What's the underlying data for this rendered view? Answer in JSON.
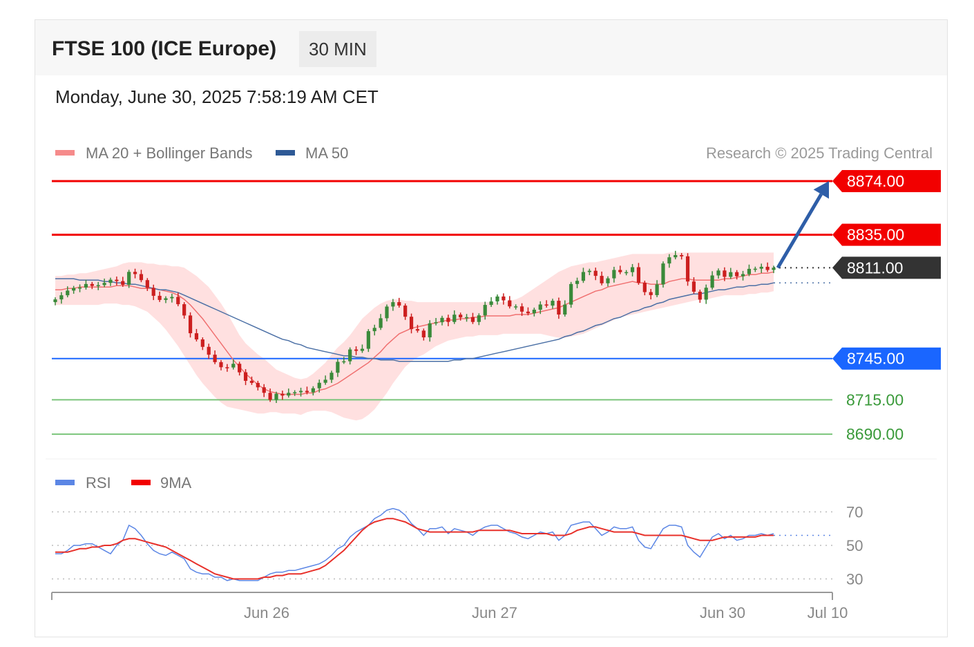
{
  "header": {
    "title": "FTSE 100 (ICE Europe)",
    "timeframe": "30 MIN",
    "datetime": "Monday, June 30, 2025 7:58:19 AM CET"
  },
  "legend": {
    "ma20": "MA 20 + Bollinger Bands",
    "ma50": "MA 50",
    "credit": "Research © 2025 Trading Central",
    "rsi": "RSI",
    "rsi_ma": "9MA"
  },
  "colors": {
    "resistance": "#f20000",
    "current": "#333333",
    "pivot": "#1a66ff",
    "support": "#7ac47a",
    "support_text": "#3a9a3a",
    "bollinger": "#ffd6d6",
    "ma20": "#f07070",
    "ma50": "#4a6fa5",
    "bull": "#3a8a3a",
    "bear": "#cc1f1f",
    "rsi": "#5b86e5",
    "rsi_ma": "#e8302a",
    "arrow": "#2e5ea8"
  },
  "chart_data": [
    {
      "type": "candlestick",
      "levels": [
        {
          "label": "8874.00",
          "value": 8874,
          "role": "resistance"
        },
        {
          "label": "8835.00",
          "value": 8835,
          "role": "resistance"
        },
        {
          "label": "8811.00",
          "value": 8811,
          "role": "current"
        },
        {
          "label": "8745.00",
          "value": 8745,
          "role": "pivot"
        },
        {
          "label": "8715.00",
          "value": 8715,
          "role": "support"
        },
        {
          "label": "8690.00",
          "value": 8690,
          "role": "support"
        }
      ],
      "ylim": [
        8672,
        8880
      ],
      "x_ticks": [
        "Jun 26",
        "Jun 27",
        "Jun 30",
        "Jul 10"
      ],
      "target": 8874,
      "close": [
        8788.0,
        8791.0,
        8794.4,
        8796.3,
        8796.6,
        8799.2,
        8797.8,
        8798.4,
        8800.0,
        8802.3,
        8801.3,
        8798.6,
        8808.0,
        8806.4,
        8802.0,
        8796.4,
        8790.6,
        8787.6,
        8788.8,
        8789.8,
        8784.5,
        8776.3,
        8763.4,
        8758.9,
        8753.5,
        8747.8,
        8742.4,
        8738.7,
        8738.5,
        8741.2,
        8735.0,
        8728.8,
        8727.3,
        8724.1,
        8720.1,
        8715.0,
        8719.4,
        8718.1,
        8720.1,
        8720.5,
        8721.5,
        8720.5,
        8723.4,
        8727.4,
        8729.6,
        8734.7,
        8742.6,
        8743.0,
        8751.6,
        8750.6,
        8752.1,
        8764.9,
        8767.3,
        8774.3,
        8782.8,
        8786.0,
        8783.5,
        8775.4,
        8766.4,
        8765.3,
        8760.4,
        8770.6,
        8771.4,
        8774.6,
        8771.6,
        8776.9,
        8774.9,
        8775.1,
        8771.6,
        8776.4,
        8784.0,
        8786.5,
        8790.1,
        8787.3,
        8782.9,
        8782.9,
        8779.1,
        8777.9,
        8780.5,
        8784.3,
        8783.5,
        8787.0,
        8777.0,
        8784.2,
        8799.2,
        8801.5,
        8807.9,
        8808.8,
        8805.1,
        8799.7,
        8803.3,
        8809.4,
        8807.8,
        8807.8,
        8811.4,
        8800.1,
        8793.3,
        8791.1,
        8798.9,
        8814.1,
        8818.6,
        8820.2,
        8819.3,
        8801.0,
        8793.6,
        8787.8,
        8796.5,
        8805.4,
        8809.0,
        8804.4,
        8807.8,
        8804.8,
        8806.4,
        8810.2,
        8810.3,
        8811.7,
        8809.4,
        8811.0
      ],
      "ma20": [
        8795,
        8795,
        8796,
        8796,
        8797,
        8797,
        8797,
        8797,
        8797,
        8797,
        8798,
        8798,
        8798,
        8797,
        8796,
        8796,
        8796,
        8795,
        8794,
        8793,
        8791,
        8788,
        8784,
        8779,
        8774,
        8768,
        8762,
        8756,
        8750,
        8744,
        8739,
        8734,
        8730,
        8726,
        8723,
        8721,
        8720,
        8719,
        8719,
        8719,
        8719,
        8720,
        8720,
        8722,
        8723,
        8725,
        8727,
        8730,
        8733,
        8736,
        8739,
        8742,
        8746,
        8750,
        8755,
        8759,
        8763,
        8765,
        8767,
        8768,
        8769,
        8770,
        8771,
        8772,
        8773,
        8773,
        8774,
        8774,
        8775,
        8775,
        8776,
        8776,
        8776,
        8776,
        8776,
        8777,
        8777,
        8777,
        8778,
        8779,
        8780,
        8781,
        8782,
        8784,
        8786,
        8788,
        8790,
        8792,
        8794,
        8795,
        8797,
        8798,
        8799,
        8800,
        8801,
        8800,
        8800,
        8799,
        8799,
        8799,
        8801,
        8802,
        8803,
        8803,
        8802,
        8802,
        8802,
        8802,
        8802,
        8803,
        8803,
        8804,
        8805,
        8806,
        8806,
        8807,
        8807,
        8808
      ],
      "bb_upper": [
        8805,
        8805,
        8806,
        8806,
        8807,
        8807,
        8808,
        8809,
        8810,
        8811,
        8812,
        8814,
        8815,
        8815,
        8815,
        8814,
        8814,
        8813,
        8813,
        8812,
        8812,
        8811,
        8808,
        8805,
        8801,
        8797,
        8791,
        8785,
        8778,
        8770,
        8762,
        8756,
        8752,
        8748,
        8745,
        8741,
        8737,
        8735,
        8733,
        8731,
        8730,
        8731,
        8734,
        8738,
        8742,
        8748,
        8753,
        8757,
        8762,
        8768,
        8774,
        8778,
        8782,
        8785,
        8787,
        8788,
        8788,
        8787,
        8787,
        8786,
        8786,
        8786,
        8786,
        8786,
        8786,
        8786,
        8786,
        8786,
        8786,
        8786,
        8786,
        8786,
        8786,
        8786,
        8787,
        8788,
        8790,
        8793,
        8796,
        8799,
        8802,
        8805,
        8808,
        8810,
        8812,
        8813,
        8814,
        8815,
        8815,
        8816,
        8817,
        8818,
        8819,
        8820,
        8821,
        8821,
        8821,
        8821,
        8821,
        8821,
        8822,
        8822,
        8822,
        8822,
        8822,
        8822,
        8822,
        8822,
        8822,
        8822,
        8822,
        8822,
        8822,
        8822,
        8822,
        8822,
        8822,
        8822
      ],
      "bb_lower": [
        8784,
        8784,
        8784,
        8784,
        8784,
        8784,
        8784,
        8784,
        8785,
        8785,
        8785,
        8784,
        8784,
        8783,
        8781,
        8779,
        8775,
        8771,
        8766,
        8760,
        8754,
        8747,
        8740,
        8733,
        8727,
        8722,
        8717,
        8713,
        8710,
        8709,
        8708,
        8707,
        8706,
        8705,
        8705,
        8706,
        8706,
        8705,
        8705,
        8705,
        8704,
        8706,
        8707,
        8707,
        8707,
        8706,
        8704,
        8702,
        8701,
        8700,
        8701,
        8704,
        8708,
        8714,
        8720,
        8727,
        8733,
        8739,
        8743,
        8746,
        8748,
        8751,
        8754,
        8756,
        8758,
        8759,
        8760,
        8761,
        8761,
        8762,
        8762,
        8762,
        8762,
        8763,
        8763,
        8763,
        8763,
        8763,
        8763,
        8763,
        8762,
        8761,
        8760,
        8760,
        8761,
        8762,
        8763,
        8765,
        8767,
        8769,
        8771,
        8773,
        8775,
        8776,
        8777,
        8778,
        8779,
        8780,
        8781,
        8782,
        8783,
        8784,
        8785,
        8786,
        8787,
        8788,
        8788,
        8789,
        8790,
        8791,
        8791,
        8791,
        8791,
        8792,
        8792,
        8793,
        8793,
        8794
      ],
      "ma50": [
        8803,
        8803,
        8803,
        8803,
        8802,
        8802,
        8802,
        8802,
        8801,
        8801,
        8800,
        8800,
        8799,
        8799,
        8798,
        8797,
        8796,
        8795,
        8795,
        8794,
        8793,
        8791,
        8789,
        8787,
        8785,
        8783,
        8781,
        8779,
        8777,
        8775,
        8773,
        8771,
        8769,
        8767,
        8765,
        8763,
        8761,
        8759,
        8758,
        8756,
        8755,
        8753,
        8752,
        8751,
        8750,
        8749,
        8748,
        8747,
        8747,
        8746,
        8746,
        8745,
        8745,
        8744,
        8744,
        8744,
        8743,
        8743,
        8743,
        8743,
        8743,
        8743,
        8743,
        8743,
        8743,
        8744,
        8744,
        8745,
        8745,
        8746,
        8747,
        8748,
        8749,
        8750,
        8751,
        8752,
        8753,
        8754,
        8755,
        8756,
        8757,
        8758,
        8759,
        8761,
        8762,
        8764,
        8765,
        8767,
        8769,
        8770,
        8772,
        8774,
        8775,
        8777,
        8779,
        8780,
        8782,
        8783,
        8785,
        8786,
        8788,
        8789,
        8790,
        8791,
        8792,
        8792,
        8793,
        8794,
        8795,
        8795,
        8796,
        8797,
        8797,
        8798,
        8798,
        8799,
        8799,
        8800
      ]
    },
    {
      "type": "line",
      "ylim": [
        24,
        76
      ],
      "y_ticks": [
        70,
        50,
        30
      ],
      "series": [
        {
          "name": "RSI",
          "values": [
            45,
            45,
            47,
            50,
            50,
            51,
            51,
            49,
            47,
            45,
            50,
            53,
            62,
            60,
            56,
            51,
            47,
            45,
            44,
            46,
            44,
            42,
            36,
            34,
            33,
            33,
            31,
            31,
            29,
            30,
            29,
            29,
            29,
            29,
            31,
            33,
            34,
            34,
            35,
            35,
            36,
            37,
            38,
            39,
            41,
            44,
            48,
            50,
            55,
            58,
            60,
            62,
            66,
            68,
            71,
            72,
            71,
            68,
            63,
            60,
            56,
            60,
            60,
            61,
            57,
            60,
            59,
            58,
            56,
            59,
            61,
            62,
            62,
            60,
            58,
            57,
            55,
            54,
            56,
            58,
            57,
            58,
            53,
            56,
            62,
            63,
            64,
            64,
            60,
            56,
            58,
            61,
            60,
            60,
            61,
            53,
            49,
            48,
            54,
            60,
            62,
            62,
            61,
            50,
            46,
            43,
            49,
            55,
            57,
            54,
            56,
            53,
            54,
            56,
            56,
            57,
            56,
            57
          ]
        },
        {
          "name": "9MA",
          "values": [
            46,
            46,
            46,
            47,
            48,
            48,
            49,
            49,
            50,
            50,
            51,
            53,
            54,
            54,
            53,
            52,
            51,
            50,
            49,
            47,
            45,
            43,
            41,
            39,
            37,
            35,
            33,
            32,
            31,
            30,
            30,
            30,
            30,
            30,
            31,
            31,
            32,
            32,
            33,
            33,
            33,
            34,
            35,
            36,
            38,
            41,
            44,
            47,
            51,
            55,
            59,
            62,
            64,
            65,
            66,
            66,
            65,
            64,
            62,
            60,
            59,
            58,
            58,
            58,
            58,
            58,
            58,
            58,
            58,
            59,
            59,
            59,
            59,
            59,
            59,
            58,
            57,
            57,
            57,
            57,
            57,
            56,
            56,
            56,
            57,
            59,
            60,
            61,
            61,
            60,
            59,
            58,
            58,
            58,
            58,
            57,
            56,
            56,
            56,
            56,
            56,
            56,
            56,
            55,
            54,
            53,
            53,
            53,
            54,
            55,
            55,
            55,
            55,
            55,
            55,
            56,
            56,
            56
          ]
        }
      ]
    }
  ]
}
